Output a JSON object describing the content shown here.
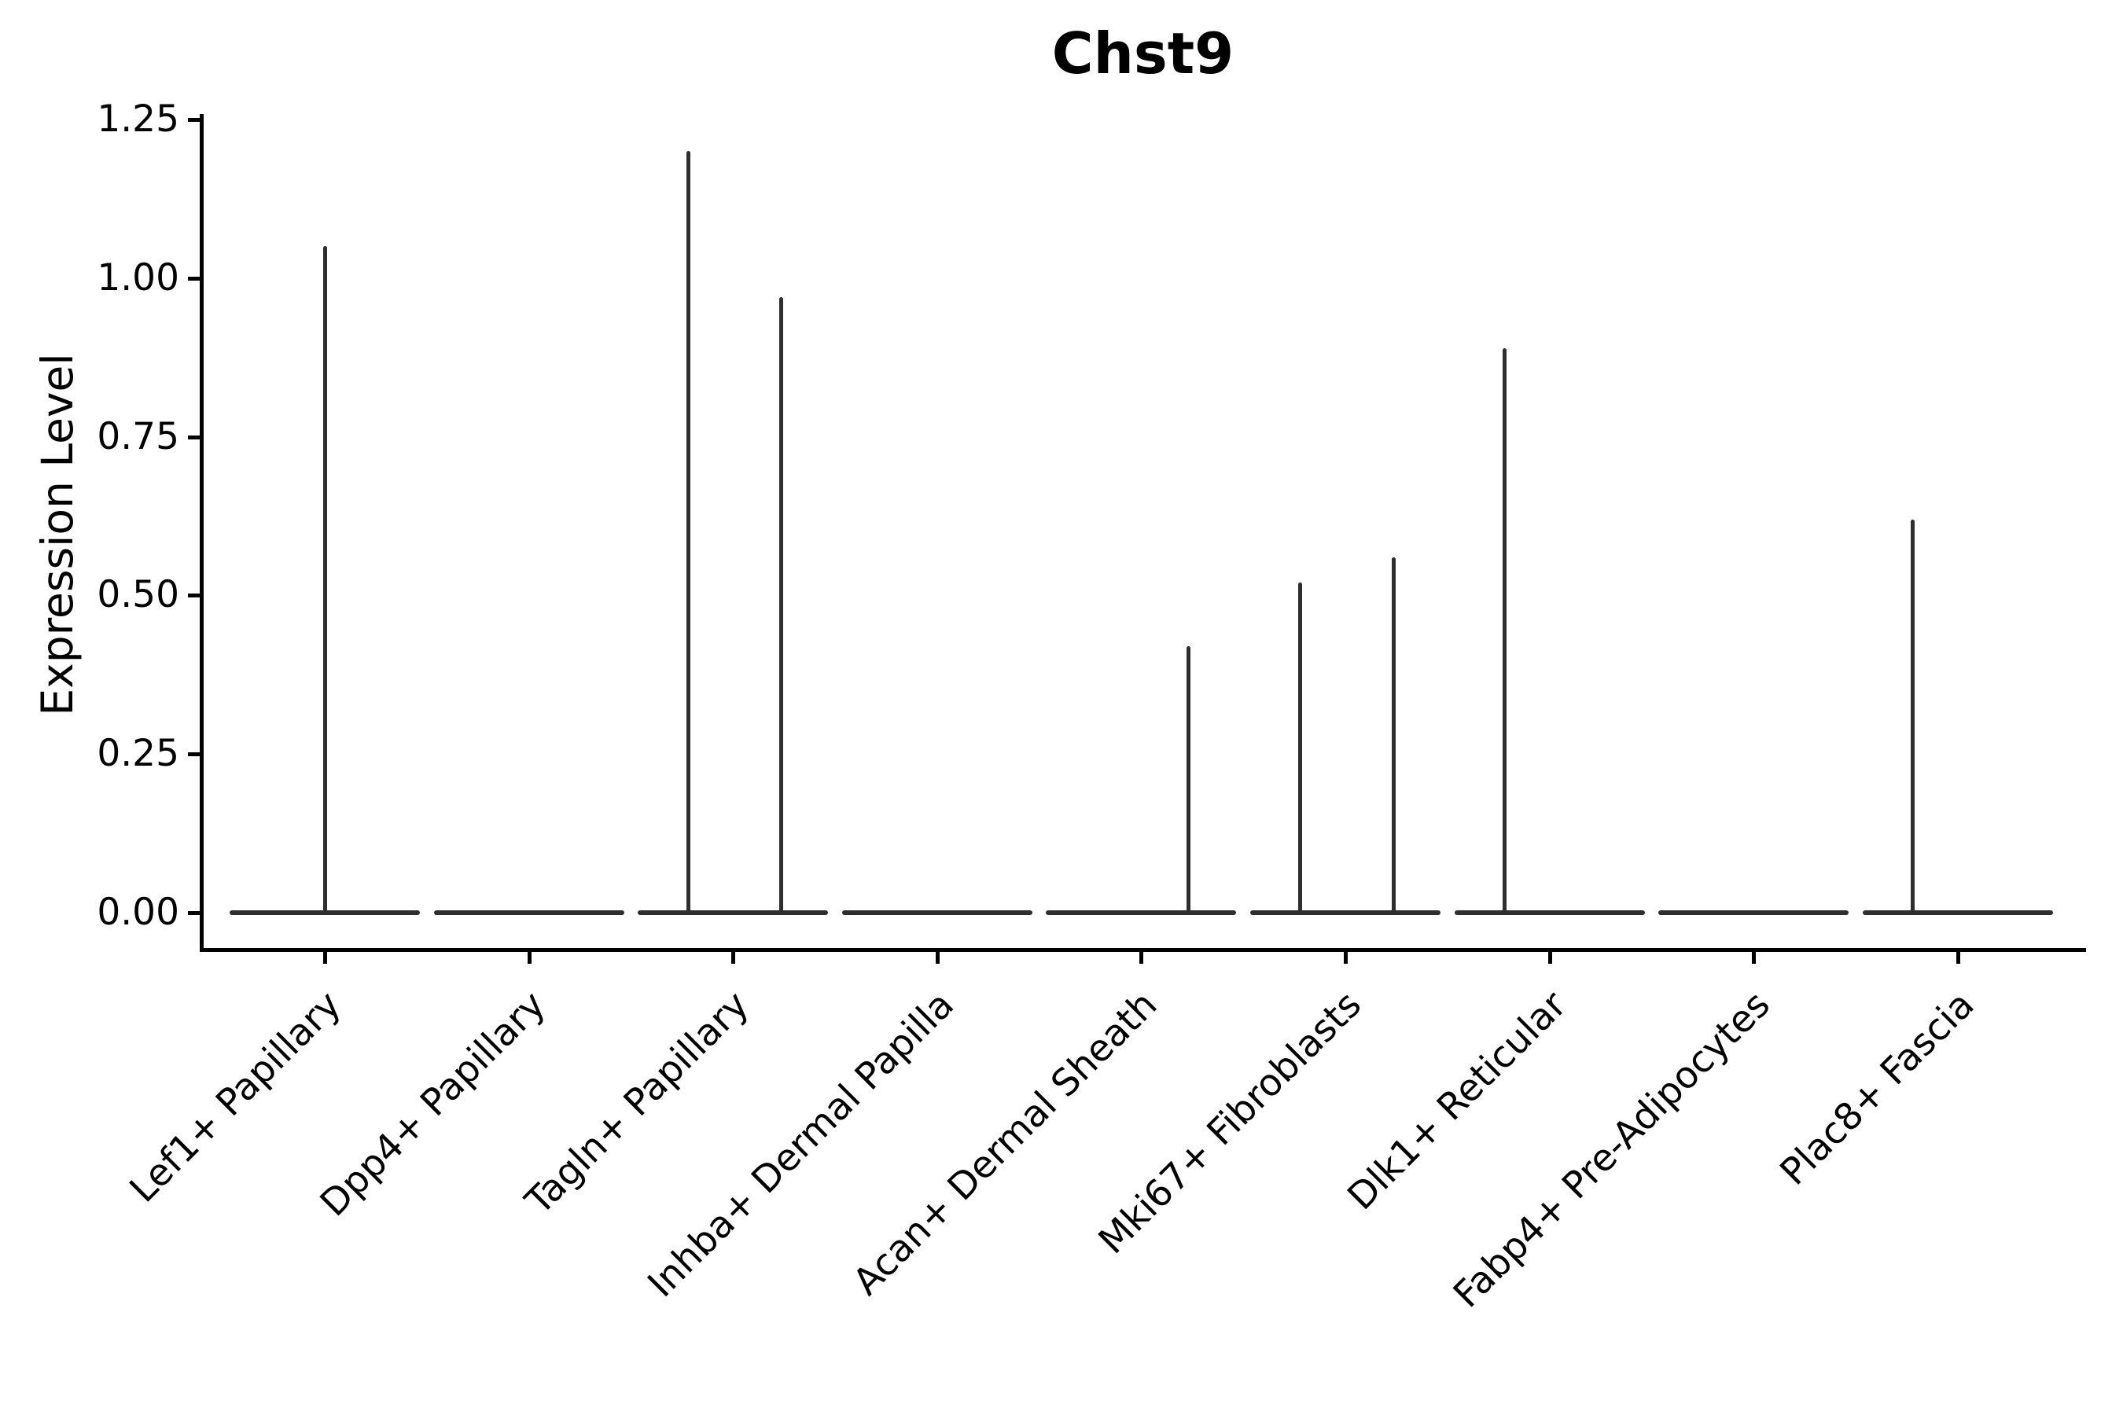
{
  "figure": {
    "title": "Chst9",
    "ylabel": "Expression Level"
  },
  "chart_data": {
    "type": "violin",
    "title": "Chst9",
    "xlabel": "",
    "ylabel": "Expression Level",
    "ylim": [
      0,
      1.25
    ],
    "ytick_labels": [
      "0.00",
      "0.25",
      "0.50",
      "0.75",
      "1.00",
      "1.25"
    ],
    "ytick_values": [
      0.0,
      0.25,
      0.5,
      0.75,
      1.0,
      1.25
    ],
    "grid": false,
    "legend": "none",
    "colors": {
      "violin_stroke": "#2e2e2e",
      "axis": "#000000",
      "text": "#000000",
      "background": "#ffffff"
    },
    "categories": [
      "Lef1+ Papillary",
      "Dpp4+ Papillary",
      "Tagln+ Papillary",
      "Inhba+ Dermal Papilla",
      "Acan+ Dermal Sheath",
      "Mki67+ Fibroblasts",
      "Dlk1+ Reticular",
      "Fabp4+ Pre-Adipocytes",
      "Plac8+ Fascia"
    ],
    "series": [
      {
        "name": "Lef1+ Papillary",
        "baseline_value": 0,
        "spikes": [
          {
            "offset": 0.0,
            "value": 1.05
          }
        ]
      },
      {
        "name": "Dpp4+ Papillary",
        "baseline_value": 0,
        "spikes": []
      },
      {
        "name": "Tagln+ Papillary",
        "baseline_value": 0,
        "spikes": [
          {
            "offset": -0.22,
            "value": 1.2
          },
          {
            "offset": 0.235,
            "value": 0.97
          }
        ]
      },
      {
        "name": "Inhba+ Dermal Papilla",
        "baseline_value": 0,
        "spikes": []
      },
      {
        "name": "Acan+ Dermal Sheath",
        "baseline_value": 0,
        "spikes": [
          {
            "offset": 0.231,
            "value": 0.42
          }
        ]
      },
      {
        "name": "Mki67+ Fibroblasts",
        "baseline_value": 0,
        "spikes": [
          {
            "offset": -0.22,
            "value": 0.52
          },
          {
            "offset": 0.235,
            "value": 0.56
          }
        ]
      },
      {
        "name": "Dlk1+ Reticular",
        "baseline_value": 0,
        "spikes": [
          {
            "offset": -0.22,
            "value": 0.89
          }
        ]
      },
      {
        "name": "Fabp4+ Pre-Adipocytes",
        "baseline_value": 0,
        "spikes": []
      },
      {
        "name": "Plac8+ Fascia",
        "baseline_value": 0,
        "spikes": [
          {
            "offset": -0.22,
            "value": 0.62
          }
        ]
      }
    ]
  }
}
